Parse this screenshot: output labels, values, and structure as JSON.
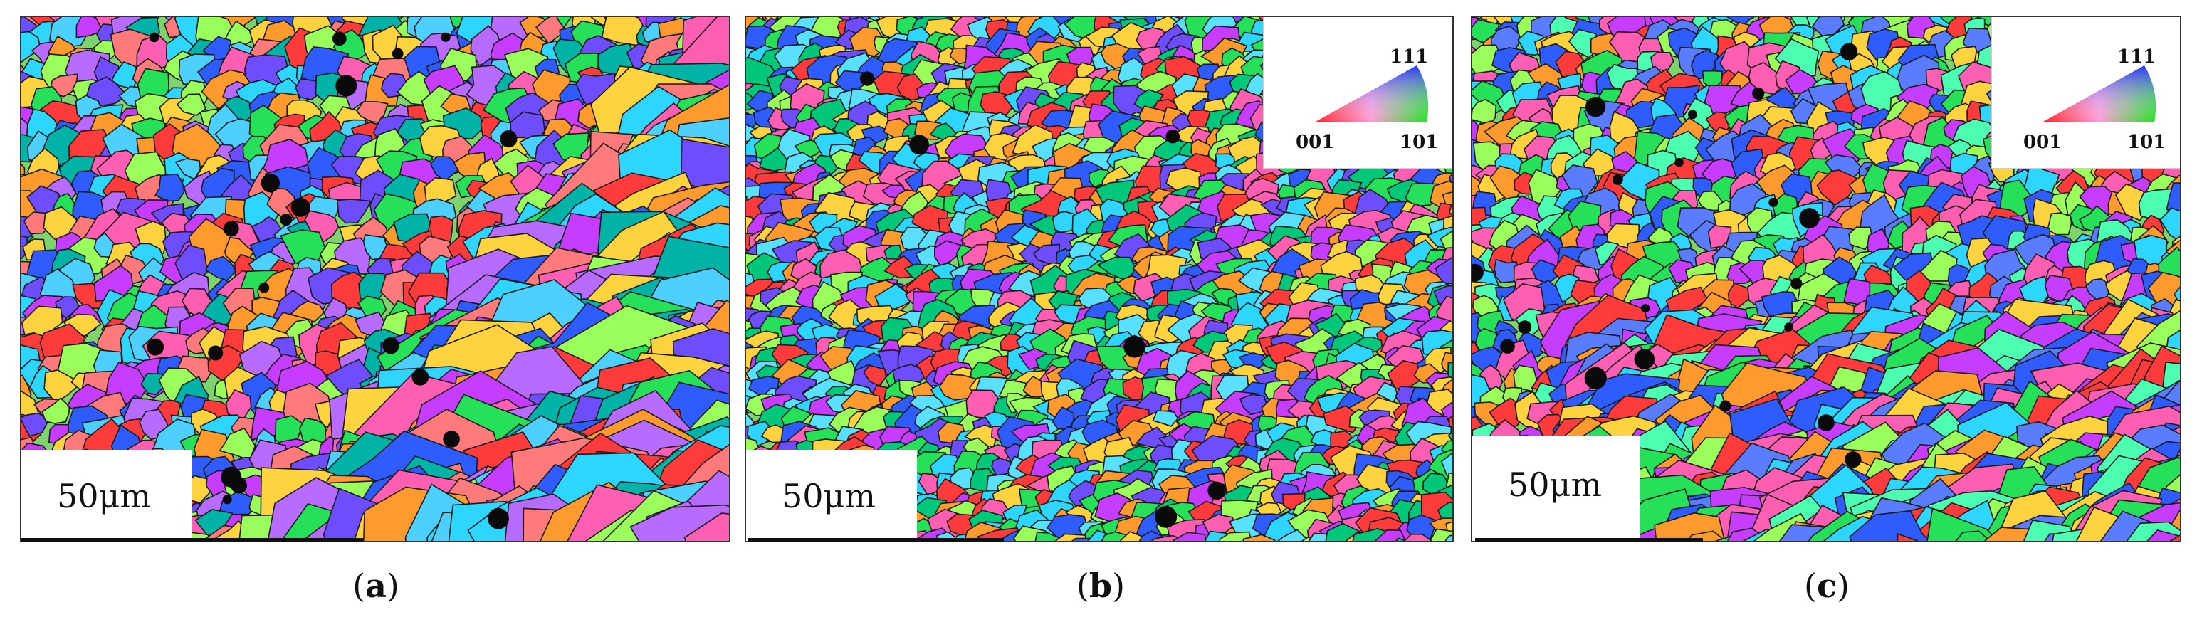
{
  "panels": [
    {
      "id": "a",
      "caption_letter": "a",
      "scale_label": "50μm",
      "has_legend": false,
      "style": {
        "coarse_region": "bottom-right",
        "palette": [
          "#ff3b3b",
          "#2f5cff",
          "#27e05a",
          "#ff9a2e",
          "#c73dff",
          "#2dd5ff",
          "#ffd23f",
          "#ff5fb2",
          "#6e4dff",
          "#9aff5a",
          "#00b3a6",
          "#ff7b7b",
          "#4dd0ff",
          "#b86bff"
        ]
      }
    },
    {
      "id": "b",
      "caption_letter": "b",
      "scale_label": "50μm",
      "has_legend": true,
      "style": {
        "coarse_region": "none",
        "palette": [
          "#ff3b3b",
          "#2f5cff",
          "#27e05a",
          "#ff9a2e",
          "#c73dff",
          "#2dd5ff",
          "#ffd23f",
          "#ff5fb2",
          "#6e4dff",
          "#9aff5a",
          "#00c77a",
          "#5ae0ff"
        ]
      }
    },
    {
      "id": "c",
      "caption_letter": "c",
      "scale_label": "50μm",
      "has_legend": true,
      "style": {
        "coarse_region": "bottom",
        "palette": [
          "#27e05a",
          "#2f5cff",
          "#ff3b3b",
          "#2dd5ff",
          "#c73dff",
          "#ff9a2e",
          "#ff5fb2",
          "#9aff5a",
          "#5a7dff",
          "#ffd23f",
          "#4dffb0"
        ]
      }
    }
  ],
  "legend": {
    "label_111": "111",
    "label_001": "001",
    "label_101": "101"
  },
  "caption_paren_open": "(",
  "caption_paren_close": ")"
}
